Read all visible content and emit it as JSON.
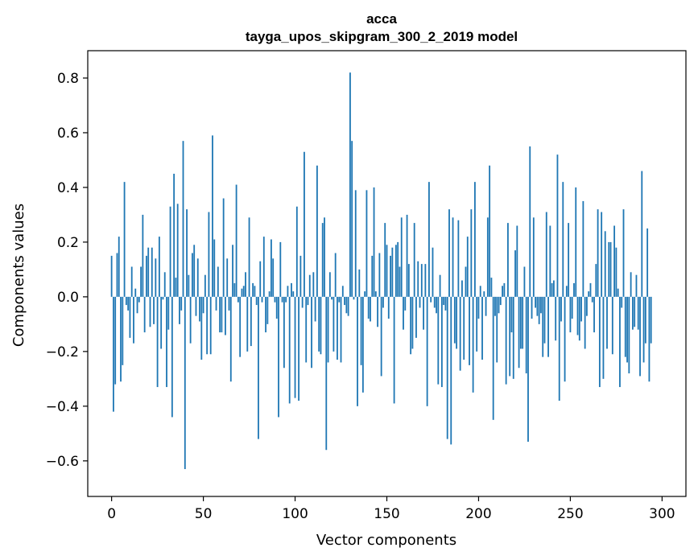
{
  "chart_data": {
    "type": "bar",
    "title": "acca",
    "subtitle": "tayga_upos_skipgram_300_2_2019 model",
    "xlabel": "Vector components",
    "ylabel": "Components values",
    "xlim": [
      -13,
      313
    ],
    "ylim": [
      -0.73,
      0.9
    ],
    "xticks": [
      0,
      50,
      100,
      150,
      200,
      250,
      300
    ],
    "xtick_labels": [
      "0",
      "50",
      "100",
      "150",
      "200",
      "250",
      "300"
    ],
    "yticks": [
      -0.6,
      -0.4,
      -0.2,
      0.0,
      0.2,
      0.4,
      0.6,
      0.8
    ],
    "ytick_labels": [
      "−0.6",
      "−0.4",
      "−0.2",
      "0.0",
      "0.2",
      "0.4",
      "0.6",
      "0.8"
    ],
    "bar_color": "#1f77b4",
    "series": [
      {
        "name": "components",
        "values": [
          0.15,
          -0.42,
          -0.32,
          0.16,
          0.22,
          -0.31,
          -0.25,
          0.42,
          -0.03,
          -0.05,
          -0.15,
          0.11,
          -0.17,
          0.03,
          -0.06,
          -0.02,
          0.11,
          0.3,
          -0.13,
          0.15,
          0.18,
          -0.11,
          0.18,
          -0.1,
          0.14,
          -0.33,
          0.22,
          -0.19,
          -0.01,
          0.09,
          -0.33,
          -0.12,
          0.33,
          -0.44,
          0.45,
          0.07,
          0.34,
          -0.1,
          -0.05,
          0.57,
          -0.63,
          0.32,
          0.08,
          -0.17,
          0.16,
          0.19,
          -0.07,
          0.14,
          -0.09,
          -0.23,
          -0.06,
          0.08,
          -0.21,
          0.31,
          -0.21,
          0.59,
          0.21,
          -0.05,
          0.11,
          -0.13,
          -0.13,
          0.36,
          -0.14,
          0.14,
          -0.05,
          -0.31,
          0.19,
          0.05,
          0.41,
          -0.02,
          -0.22,
          0.03,
          0.04,
          0.09,
          -0.2,
          0.29,
          -0.18,
          0.05,
          0.04,
          -0.03,
          -0.52,
          0.13,
          -0.02,
          0.22,
          -0.13,
          -0.1,
          0.02,
          0.21,
          0.14,
          -0.02,
          -0.08,
          -0.44,
          0.2,
          -0.02,
          -0.26,
          -0.02,
          0.04,
          -0.39,
          0.05,
          0.02,
          -0.37,
          0.33,
          -0.38,
          0.15,
          -0.04,
          0.53,
          -0.24,
          -0.03,
          0.08,
          -0.26,
          0.09,
          -0.09,
          0.48,
          -0.2,
          -0.21,
          0.27,
          0.29,
          -0.56,
          -0.24,
          0.09,
          -0.01,
          -0.2,
          0.16,
          -0.23,
          -0.02,
          -0.24,
          0.04,
          -0.03,
          -0.06,
          -0.07,
          0.82,
          0.57,
          -0.01,
          0.39,
          -0.4,
          0.1,
          -0.25,
          -0.35,
          0.02,
          0.39,
          -0.08,
          -0.09,
          0.15,
          0.4,
          0.02,
          -0.11,
          0.16,
          -0.29,
          -0.04,
          0.27,
          0.19,
          -0.08,
          0.15,
          0.18,
          -0.39,
          0.19,
          0.2,
          0.11,
          0.29,
          -0.12,
          -0.05,
          0.3,
          0.12,
          -0.21,
          -0.19,
          0.27,
          -0.15,
          0.13,
          -0.04,
          0.12,
          -0.12,
          0.12,
          -0.4,
          0.42,
          -0.02,
          0.18,
          -0.04,
          -0.06,
          -0.32,
          0.08,
          -0.33,
          -0.03,
          -0.05,
          -0.52,
          0.32,
          -0.54,
          0.29,
          -0.17,
          -0.19,
          0.28,
          -0.27,
          0.06,
          -0.23,
          0.11,
          0.22,
          -0.25,
          0.32,
          -0.35,
          0.42,
          -0.2,
          -0.08,
          0.04,
          -0.23,
          0.02,
          -0.07,
          0.29,
          0.48,
          0.07,
          -0.45,
          -0.07,
          -0.24,
          -0.06,
          -0.03,
          0.04,
          0.05,
          -0.32,
          0.27,
          -0.29,
          -0.13,
          -0.3,
          0.17,
          0.26,
          -0.26,
          -0.19,
          -0.19,
          0.11,
          -0.28,
          -0.53,
          0.55,
          -0.08,
          0.29,
          -0.04,
          -0.07,
          -0.1,
          -0.06,
          -0.22,
          -0.17,
          0.31,
          -0.22,
          0.26,
          0.05,
          0.06,
          -0.16,
          0.52,
          -0.38,
          -0.09,
          0.42,
          -0.31,
          0.04,
          0.27,
          -0.13,
          -0.08,
          0.05,
          0.4,
          -0.14,
          -0.16,
          -0.09,
          0.35,
          -0.19,
          -0.07,
          0.02,
          0.05,
          -0.02,
          -0.13,
          0.12,
          0.32,
          -0.33,
          0.31,
          -0.3,
          0.24,
          -0.19,
          0.2,
          0.2,
          -0.21,
          0.26,
          0.18,
          0.03,
          -0.33,
          -0.04,
          0.32,
          -0.22,
          -0.24,
          -0.28,
          0.09,
          -0.12,
          -0.11,
          0.08,
          -0.12,
          -0.29,
          0.46,
          -0.24,
          -0.17,
          0.25,
          -0.31,
          -0.17
        ]
      }
    ]
  }
}
